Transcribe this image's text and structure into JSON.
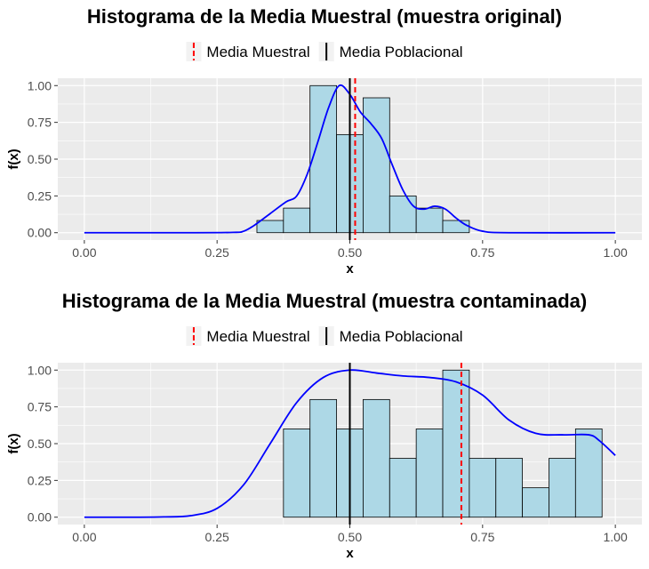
{
  "chart_data": [
    {
      "type": "histogram",
      "title": "Histograma de la Media Muestral (muestra original)",
      "xlabel": "x",
      "ylabel": "f(x)",
      "xlim": [
        0,
        1
      ],
      "ylim": [
        0,
        1
      ],
      "x_ticks": [
        "0.00",
        "0.25",
        "0.50",
        "0.75",
        "1.00"
      ],
      "y_ticks": [
        "0.00",
        "0.25",
        "0.50",
        "0.75",
        "1.00"
      ],
      "grid": true,
      "legend": {
        "position": "top",
        "entries": [
          {
            "label": "Media Muestral",
            "color": "#ff0000",
            "linetype": "dashed"
          },
          {
            "label": "Media Poblacional",
            "color": "#000000",
            "linetype": "solid"
          }
        ]
      },
      "bins": [
        {
          "x0": 0.325,
          "x1": 0.375,
          "density": 0.083
        },
        {
          "x0": 0.375,
          "x1": 0.425,
          "density": 0.167
        },
        {
          "x0": 0.425,
          "x1": 0.475,
          "density": 1.0
        },
        {
          "x0": 0.475,
          "x1": 0.525,
          "density": 0.667
        },
        {
          "x0": 0.525,
          "x1": 0.575,
          "density": 0.917
        },
        {
          "x0": 0.575,
          "x1": 0.625,
          "density": 0.25
        },
        {
          "x0": 0.625,
          "x1": 0.675,
          "density": 0.167
        },
        {
          "x0": 0.675,
          "x1": 0.725,
          "density": 0.083
        }
      ],
      "density_curve": {
        "x": [
          0.0,
          0.2,
          0.28,
          0.3,
          0.32,
          0.35,
          0.38,
          0.4,
          0.42,
          0.44,
          0.46,
          0.48,
          0.5,
          0.52,
          0.54,
          0.56,
          0.58,
          0.6,
          0.62,
          0.64,
          0.66,
          0.68,
          0.7,
          0.72,
          0.75,
          0.8,
          1.0
        ],
        "y": [
          0.0,
          0.0,
          0.002,
          0.01,
          0.05,
          0.13,
          0.21,
          0.25,
          0.4,
          0.62,
          0.85,
          1.0,
          0.94,
          0.82,
          0.74,
          0.64,
          0.46,
          0.29,
          0.18,
          0.16,
          0.18,
          0.16,
          0.1,
          0.05,
          0.01,
          0.0,
          0.0
        ]
      },
      "sample_mean": 0.51,
      "population_mean": 0.5
    },
    {
      "type": "histogram",
      "title": "Histograma de la Media Muestral (muestra contaminada)",
      "xlabel": "x",
      "ylabel": "f(x)",
      "xlim": [
        0,
        1
      ],
      "ylim": [
        0,
        1
      ],
      "x_ticks": [
        "0.00",
        "0.25",
        "0.50",
        "0.75",
        "1.00"
      ],
      "y_ticks": [
        "0.00",
        "0.25",
        "0.50",
        "0.75",
        "1.00"
      ],
      "grid": true,
      "legend": {
        "position": "top",
        "entries": [
          {
            "label": "Media Muestral",
            "color": "#ff0000",
            "linetype": "dashed"
          },
          {
            "label": "Media Poblacional",
            "color": "#000000",
            "linetype": "solid"
          }
        ]
      },
      "bins": [
        {
          "x0": 0.375,
          "x1": 0.425,
          "density": 0.6
        },
        {
          "x0": 0.425,
          "x1": 0.475,
          "density": 0.8
        },
        {
          "x0": 0.475,
          "x1": 0.525,
          "density": 0.6
        },
        {
          "x0": 0.525,
          "x1": 0.575,
          "density": 0.8
        },
        {
          "x0": 0.575,
          "x1": 0.625,
          "density": 0.4
        },
        {
          "x0": 0.625,
          "x1": 0.675,
          "density": 0.6
        },
        {
          "x0": 0.675,
          "x1": 0.725,
          "density": 1.0
        },
        {
          "x0": 0.725,
          "x1": 0.775,
          "density": 0.4
        },
        {
          "x0": 0.775,
          "x1": 0.825,
          "density": 0.4
        },
        {
          "x0": 0.825,
          "x1": 0.875,
          "density": 0.2
        },
        {
          "x0": 0.875,
          "x1": 0.925,
          "density": 0.4
        },
        {
          "x0": 0.925,
          "x1": 0.975,
          "density": 0.6
        }
      ],
      "density_curve": {
        "x": [
          0.0,
          0.1,
          0.15,
          0.2,
          0.25,
          0.3,
          0.35,
          0.4,
          0.45,
          0.5,
          0.55,
          0.6,
          0.65,
          0.7,
          0.75,
          0.8,
          0.85,
          0.9,
          0.95,
          0.97,
          1.0
        ],
        "y": [
          0.0,
          0.0,
          0.002,
          0.01,
          0.06,
          0.22,
          0.5,
          0.78,
          0.95,
          1.0,
          0.98,
          0.96,
          0.95,
          0.92,
          0.83,
          0.66,
          0.57,
          0.56,
          0.56,
          0.52,
          0.42
        ]
      },
      "sample_mean": 0.71,
      "population_mean": 0.5
    }
  ],
  "colors": {
    "panel_bg": "#ebebeb",
    "grid_major": "#ffffff",
    "bar_fill": "#add8e6",
    "bar_stroke": "#000000",
    "density": "#0000ff",
    "sample_mean": "#ff0000",
    "population_mean": "#000000",
    "legend_key_bg": "#f2f2f2"
  }
}
